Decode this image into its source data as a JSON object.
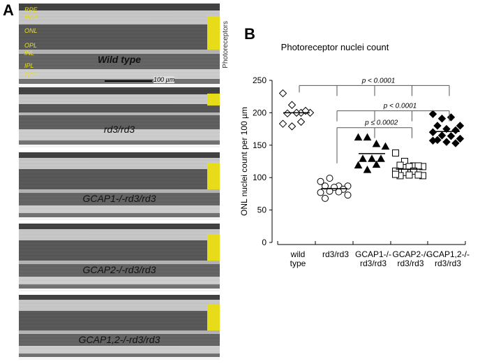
{
  "panel_a": {
    "letter": "A",
    "side_label": "Photoreceptors",
    "scale_bar": "100 µm",
    "layer_labels": [
      "RPE",
      "ROS",
      "ONL",
      "OPL",
      "INL",
      "IPL",
      "GCL"
    ],
    "panels": [
      {
        "label": "Wild type"
      },
      {
        "label": "rd3/rd3"
      },
      {
        "label": "GCAP1-/-rd3/rd3"
      },
      {
        "label": "GCAP2-/-rd3/rd3"
      },
      {
        "label": "GCAP1,2-/-rd3/rd3"
      }
    ],
    "highlight_color": "#e6dc1a"
  },
  "panel_b": {
    "letter": "B"
  },
  "chart_data": {
    "type": "scatter",
    "title": "Photoreceptor nuclei count",
    "ylabel": "ONL nuclei count per  100 µm",
    "xlabel": "",
    "ylim": [
      0,
      250
    ],
    "yticks": [
      0,
      50,
      100,
      150,
      200,
      250
    ],
    "grid": false,
    "categories": [
      {
        "line1": "wild",
        "line2": "type",
        "marker": "open-diamond"
      },
      {
        "line1": "rd3/rd3",
        "line2": "",
        "marker": "open-circle"
      },
      {
        "line1": "GCAP1-/-",
        "line2": "rd3/rd3",
        "marker": "filled-triangle"
      },
      {
        "line1": "GCAP2-/-",
        "line2": "rd3/rd3",
        "marker": "open-square"
      },
      {
        "line1": "GCAP1,2-/-",
        "line2": "rd3/rd3",
        "marker": "filled-diamond"
      }
    ],
    "series": [
      {
        "values": [
          230,
          212,
          200,
          200,
          199,
          200,
          203,
          183,
          179,
          186
        ],
        "mean": 200
      },
      {
        "values": [
          94,
          99,
          87,
          87,
          87,
          85,
          82,
          77,
          79,
          78,
          73,
          68
        ],
        "mean": 83
      },
      {
        "values": [
          162,
          162,
          152,
          148,
          129,
          129,
          129,
          119,
          112,
          120
        ],
        "mean": 137
      },
      {
        "values": [
          138,
          125,
          118,
          117,
          119,
          117,
          118,
          110,
          108,
          110,
          103,
          103,
          104,
          104,
          105
        ],
        "mean": 113
      },
      {
        "values": [
          198,
          191,
          193,
          180,
          180,
          175,
          173,
          170,
          165,
          164,
          160,
          158,
          155,
          153,
          157
        ],
        "mean": 171
      }
    ],
    "annotations": [
      {
        "text": "p < 0.0001",
        "from": 0,
        "to": [
          1,
          2,
          3,
          4
        ],
        "level": 242
      },
      {
        "text": "p < 0.0001",
        "from": 1,
        "to": [
          2,
          3,
          4
        ],
        "level": 203
      },
      {
        "text": "p ≤ 0.0002",
        "from": 1,
        "to": [
          2,
          3
        ],
        "level": 177
      }
    ]
  }
}
